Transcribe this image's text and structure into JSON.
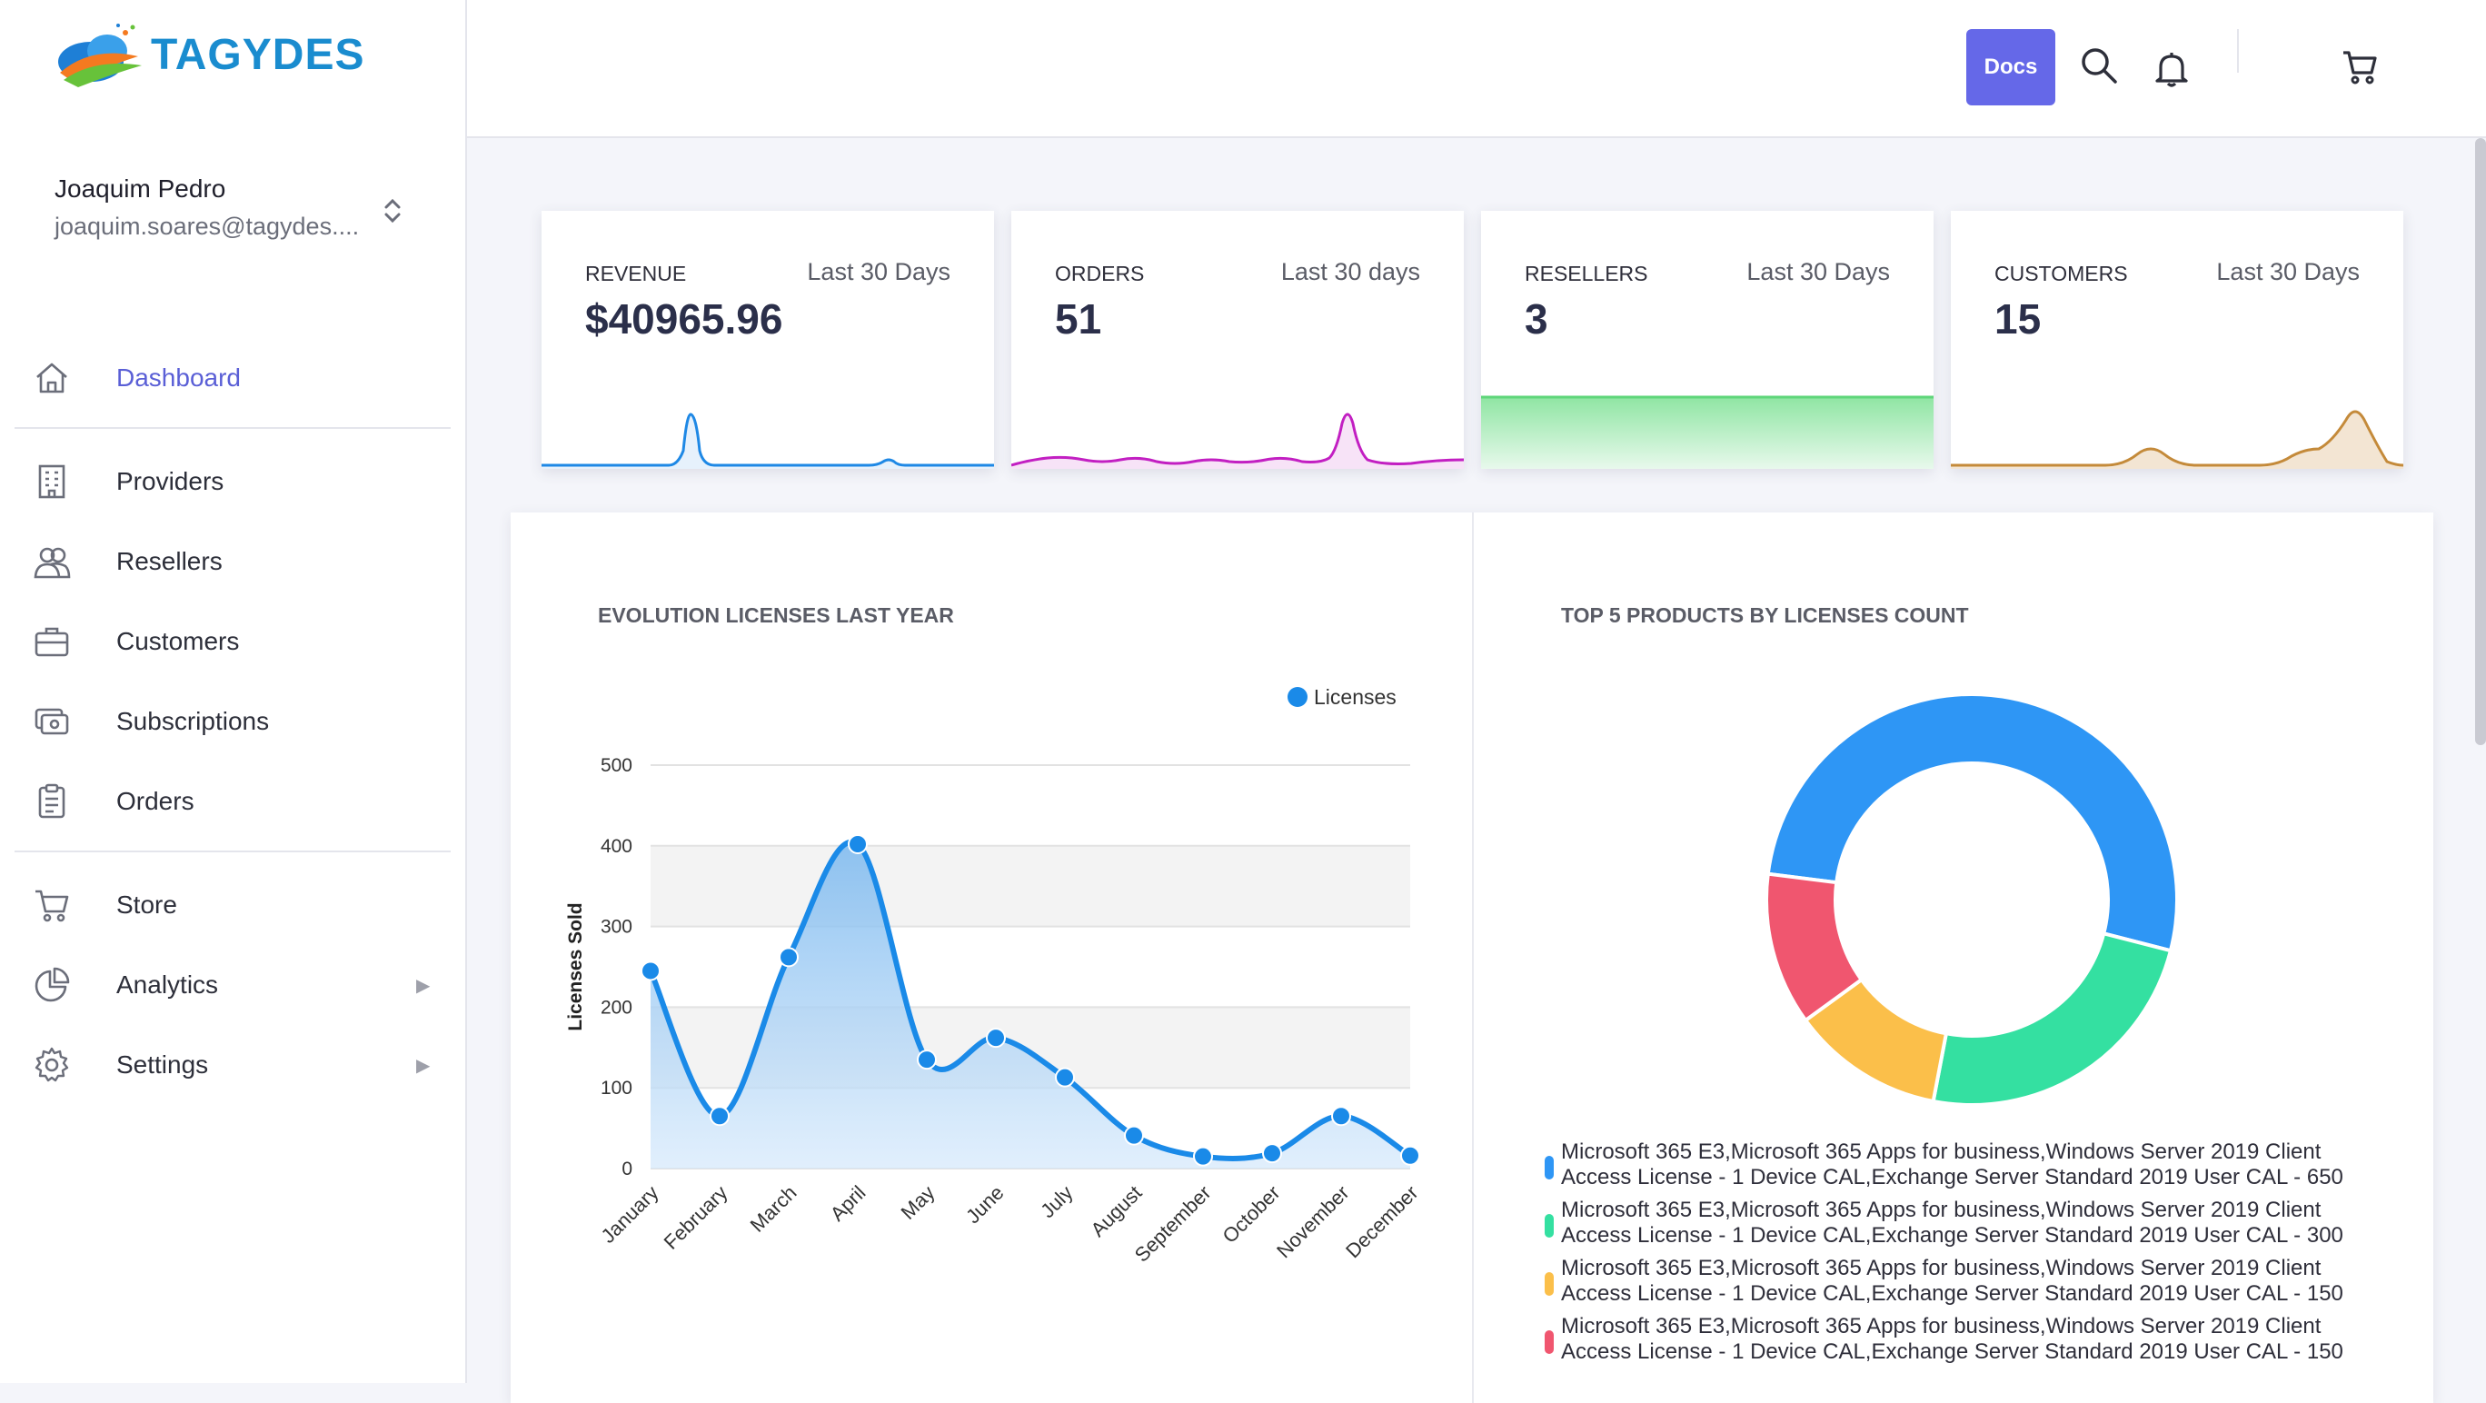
{
  "brand": {
    "name": "TAGYDES"
  },
  "user": {
    "name": "Joaquim Pedro",
    "email": "joaquim.soares@tagydes...."
  },
  "nav": {
    "items": [
      {
        "label": "Dashboard",
        "icon": "home-icon",
        "active": true
      },
      {
        "label": "Providers",
        "icon": "building-icon"
      },
      {
        "label": "Resellers",
        "icon": "users-icon"
      },
      {
        "label": "Customers",
        "icon": "briefcase-icon"
      },
      {
        "label": "Subscriptions",
        "icon": "cash-icon"
      },
      {
        "label": "Orders",
        "icon": "clipboard-icon"
      },
      {
        "label": "Store",
        "icon": "cart-icon"
      },
      {
        "label": "Analytics",
        "icon": "pie-icon",
        "submenu": true
      },
      {
        "label": "Settings",
        "icon": "gear-icon",
        "submenu": true
      }
    ]
  },
  "topbar": {
    "docs_label": "Docs",
    "icons": [
      "search-icon",
      "bell-icon",
      "cart-icon"
    ]
  },
  "stats": [
    {
      "title": "REVENUE",
      "period": "Last 30 Days",
      "value": "$40965.96",
      "color": "#1e88e5"
    },
    {
      "title": "ORDERS",
      "period": "Last 30 days",
      "value": "51",
      "color": "#c21fc2"
    },
    {
      "title": "RESELLERS",
      "period": "Last 30 Days",
      "value": "3",
      "color": "#5fd67a"
    },
    {
      "title": "CUSTOMERS",
      "period": "Last 30 Days",
      "value": "15",
      "color": "#c48a3a"
    }
  ],
  "evolution": {
    "title": "EVOLUTION LICENSES LAST YEAR",
    "chart_data": {
      "type": "area",
      "categories": [
        "January",
        "February",
        "March",
        "April",
        "May",
        "June",
        "July",
        "August",
        "September",
        "October",
        "November",
        "December"
      ],
      "series": [
        {
          "name": "Licenses",
          "values": [
            245,
            65,
            262,
            402,
            135,
            162,
            113,
            41,
            15,
            19,
            65,
            16
          ]
        }
      ],
      "ylabel": "Licenses Sold",
      "ylim": [
        0,
        500
      ],
      "yticks": [
        "0",
        "100",
        "200",
        "300",
        "400",
        "500"
      ],
      "legend": "top-right",
      "grid": true,
      "color": "#1a8ae8"
    }
  },
  "top_products": {
    "title": "TOP 5 PRODUCTS BY LICENSES COUNT",
    "chart_data": {
      "type": "pie",
      "values": [
        650,
        300,
        150,
        150
      ],
      "colors": [
        "#2e96f5",
        "#34e0a1",
        "#fbbf4a",
        "#f0566f"
      ],
      "legend": [
        "Microsoft 365 E3,Microsoft 365 Apps for business,Windows Server 2019 Client Access License - 1 Device CAL,Exchange Server Standard 2019 User CAL - 650",
        "Microsoft 365 E3,Microsoft 365 Apps for business,Windows Server 2019 Client Access License - 1 Device CAL,Exchange Server Standard 2019 User CAL - 300",
        "Microsoft 365 E3,Microsoft 365 Apps for business,Windows Server 2019 Client Access License - 1 Device CAL,Exchange Server Standard 2019 User CAL - 150",
        "Microsoft 365 E3,Microsoft 365 Apps for business,Windows Server 2019 Client Access License - 1 Device CAL,Exchange Server Standard 2019 User CAL - 150"
      ]
    }
  }
}
